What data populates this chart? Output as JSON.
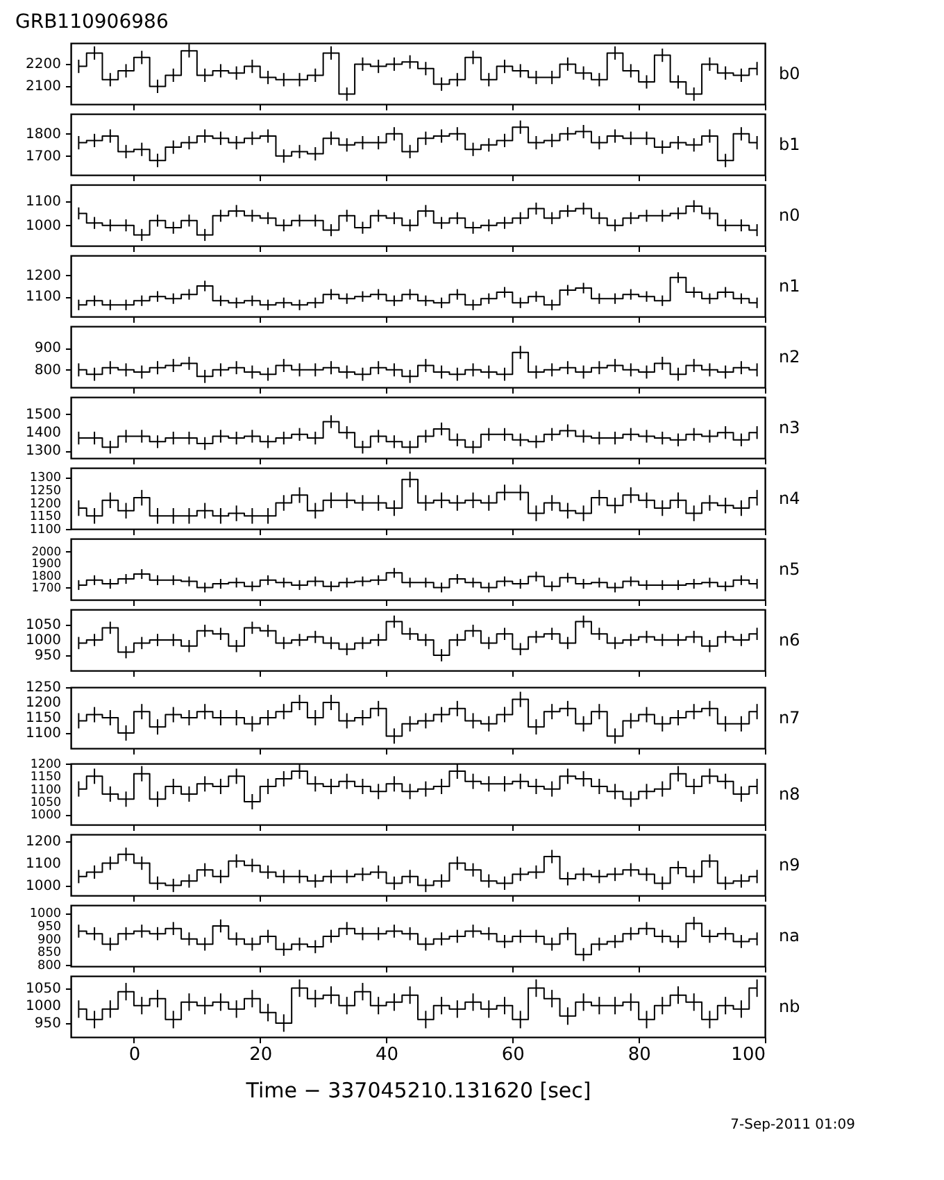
{
  "chart_data": [
    {
      "type": "step",
      "title": "GRB110906986",
      "y2label": "b0",
      "tick_labels": "y",
      "grid": false,
      "xlim": [
        -10,
        100
      ],
      "xticks": [
        0,
        20,
        40,
        60,
        80,
        100
      ],
      "ylim": [
        2020,
        2295
      ],
      "yticks": [
        2100,
        2200
      ],
      "x": [
        -8.75,
        -6.25,
        -3.75,
        -1.25,
        1.25,
        3.75,
        6.25,
        8.75,
        11.25,
        13.75,
        16.25,
        18.75,
        21.25,
        23.75,
        26.25,
        28.75,
        31.25,
        33.75,
        36.25,
        38.75,
        41.25,
        43.75,
        46.25,
        48.75,
        51.25,
        53.75,
        56.25,
        58.75,
        61.25,
        63.75,
        66.25,
        68.75,
        71.25,
        73.75,
        76.25,
        78.75,
        81.25,
        83.75,
        86.25,
        88.75,
        91.25,
        93.75,
        96.25,
        98.75
      ],
      "values": [
        2190,
        2250,
        2130,
        2170,
        2230,
        2100,
        2150,
        2260,
        2150,
        2170,
        2160,
        2190,
        2140,
        2130,
        2130,
        2150,
        2250,
        2065,
        2200,
        2190,
        2200,
        2210,
        2180,
        2110,
        2130,
        2230,
        2130,
        2190,
        2170,
        2140,
        2140,
        2200,
        2160,
        2130,
        2250,
        2170,
        2120,
        2240,
        2120,
        2065,
        2200,
        2160,
        2150,
        2180
      ],
      "errors": [
        30,
        30,
        30,
        30,
        30,
        30,
        30,
        30,
        30,
        30,
        30,
        30,
        30,
        30,
        30,
        30,
        30,
        30,
        30,
        30,
        30,
        30,
        30,
        30,
        30,
        30,
        30,
        30,
        30,
        30,
        30,
        30,
        30,
        30,
        30,
        30,
        30,
        30,
        30,
        30,
        30,
        30,
        30,
        30
      ]
    },
    {
      "type": "step",
      "y2label": "b1",
      "tick_labels": "y",
      "grid": false,
      "xlim": [
        -10,
        100
      ],
      "xticks": [
        0,
        20,
        40,
        60,
        80,
        100
      ],
      "ylim": [
        1615,
        1890
      ],
      "yticks": [
        1700,
        1800
      ],
      "x": [
        -8.75,
        -6.25,
        -3.75,
        -1.25,
        1.25,
        3.75,
        6.25,
        8.75,
        11.25,
        13.75,
        16.25,
        18.75,
        21.25,
        23.75,
        26.25,
        28.75,
        31.25,
        33.75,
        36.25,
        38.75,
        41.25,
        43.75,
        46.25,
        48.75,
        51.25,
        53.75,
        56.25,
        58.75,
        61.25,
        63.75,
        66.25,
        68.75,
        71.25,
        73.75,
        76.25,
        78.75,
        81.25,
        83.75,
        86.25,
        88.75,
        91.25,
        93.75,
        96.25,
        98.75
      ],
      "values": [
        1760,
        1770,
        1790,
        1720,
        1730,
        1680,
        1740,
        1760,
        1790,
        1780,
        1760,
        1780,
        1790,
        1700,
        1720,
        1710,
        1780,
        1750,
        1760,
        1760,
        1800,
        1720,
        1780,
        1790,
        1800,
        1730,
        1750,
        1770,
        1830,
        1760,
        1770,
        1800,
        1810,
        1760,
        1790,
        1780,
        1780,
        1740,
        1760,
        1750,
        1790,
        1680,
        1800,
        1760
      ],
      "errors": [
        30,
        30,
        30,
        30,
        30,
        30,
        30,
        30,
        30,
        30,
        30,
        30,
        30,
        30,
        30,
        30,
        30,
        30,
        30,
        30,
        30,
        30,
        30,
        30,
        30,
        30,
        30,
        30,
        30,
        30,
        30,
        30,
        30,
        30,
        30,
        30,
        30,
        30,
        30,
        30,
        30,
        30,
        30,
        30
      ]
    },
    {
      "type": "step",
      "y2label": "n0",
      "tick_labels": "y",
      "grid": false,
      "xlim": [
        -10,
        100
      ],
      "xticks": [
        0,
        20,
        40,
        60,
        80,
        100
      ],
      "ylim": [
        915,
        1170
      ],
      "yticks": [
        1000,
        1100
      ],
      "x": [
        -8.75,
        -6.25,
        -3.75,
        -1.25,
        1.25,
        3.75,
        6.25,
        8.75,
        11.25,
        13.75,
        16.25,
        18.75,
        21.25,
        23.75,
        26.25,
        28.75,
        31.25,
        33.75,
        36.25,
        38.75,
        41.25,
        43.75,
        46.25,
        48.75,
        51.25,
        53.75,
        56.25,
        58.75,
        61.25,
        63.75,
        66.25,
        68.75,
        71.25,
        73.75,
        76.25,
        78.75,
        81.25,
        83.75,
        86.25,
        88.75,
        91.25,
        93.75,
        96.25,
        98.75
      ],
      "values": [
        1050,
        1010,
        1000,
        1000,
        960,
        1020,
        990,
        1020,
        960,
        1040,
        1060,
        1040,
        1030,
        1000,
        1020,
        1020,
        980,
        1040,
        990,
        1040,
        1030,
        1000,
        1060,
        1010,
        1030,
        990,
        1000,
        1010,
        1030,
        1070,
        1030,
        1060,
        1070,
        1030,
        1000,
        1030,
        1040,
        1040,
        1050,
        1080,
        1050,
        1000,
        1000,
        980
      ],
      "errors": [
        25,
        25,
        25,
        25,
        25,
        25,
        25,
        25,
        25,
        25,
        25,
        25,
        25,
        25,
        25,
        25,
        25,
        25,
        25,
        25,
        25,
        25,
        25,
        25,
        25,
        25,
        25,
        25,
        25,
        25,
        25,
        25,
        25,
        25,
        25,
        25,
        25,
        25,
        25,
        25,
        25,
        25,
        25,
        25
      ]
    },
    {
      "type": "step",
      "y2label": "n1",
      "tick_labels": "y",
      "grid": false,
      "xlim": [
        -10,
        100
      ],
      "xticks": [
        0,
        20,
        40,
        60,
        80,
        100
      ],
      "ylim": [
        1005,
        1295
      ],
      "yticks": [
        1100,
        1200
      ],
      "x": [
        -8.75,
        -6.25,
        -3.75,
        -1.25,
        1.25,
        3.75,
        6.25,
        8.75,
        11.25,
        13.75,
        16.25,
        18.75,
        21.25,
        23.75,
        26.25,
        28.75,
        31.25,
        33.75,
        36.25,
        38.75,
        41.25,
        43.75,
        46.25,
        48.75,
        51.25,
        53.75,
        56.25,
        58.75,
        61.25,
        63.75,
        66.25,
        68.75,
        71.25,
        73.75,
        76.25,
        78.75,
        81.25,
        83.75,
        86.25,
        88.75,
        91.25,
        93.75,
        96.25,
        98.75
      ],
      "values": [
        1060,
        1080,
        1060,
        1060,
        1080,
        1100,
        1090,
        1110,
        1150,
        1080,
        1070,
        1080,
        1060,
        1070,
        1060,
        1070,
        1110,
        1090,
        1100,
        1110,
        1080,
        1110,
        1080,
        1070,
        1110,
        1060,
        1090,
        1120,
        1070,
        1100,
        1060,
        1130,
        1140,
        1090,
        1090,
        1110,
        1100,
        1080,
        1190,
        1120,
        1090,
        1120,
        1090,
        1070
      ],
      "errors": [
        25,
        25,
        25,
        25,
        25,
        25,
        25,
        25,
        25,
        25,
        25,
        25,
        25,
        25,
        25,
        25,
        25,
        25,
        25,
        25,
        25,
        25,
        25,
        25,
        25,
        25,
        25,
        25,
        25,
        25,
        25,
        25,
        25,
        25,
        25,
        25,
        25,
        25,
        25,
        25,
        25,
        25,
        25,
        25
      ]
    },
    {
      "type": "step",
      "y2label": "n2",
      "tick_labels": "y",
      "grid": false,
      "xlim": [
        -10,
        100
      ],
      "xticks": [
        0,
        20,
        40,
        60,
        80,
        100
      ],
      "ylim": [
        720,
        1000
      ],
      "yticks": [
        800,
        900
      ],
      "x": [
        -8.75,
        -6.25,
        -3.75,
        -1.25,
        1.25,
        3.75,
        6.25,
        8.75,
        11.25,
        13.75,
        16.25,
        18.75,
        21.25,
        23.75,
        26.25,
        28.75,
        31.25,
        33.75,
        36.25,
        38.75,
        41.25,
        43.75,
        46.25,
        48.75,
        51.25,
        53.75,
        56.25,
        58.75,
        61.25,
        63.75,
        66.25,
        68.75,
        71.25,
        73.75,
        76.25,
        78.75,
        81.25,
        83.75,
        86.25,
        88.75,
        91.25,
        93.75,
        96.25,
        98.75
      ],
      "values": [
        800,
        780,
        810,
        800,
        790,
        810,
        820,
        830,
        770,
        800,
        810,
        790,
        780,
        820,
        800,
        800,
        810,
        790,
        780,
        810,
        800,
        770,
        820,
        790,
        780,
        800,
        790,
        780,
        880,
        790,
        800,
        810,
        790,
        810,
        820,
        800,
        790,
        830,
        780,
        820,
        800,
        790,
        810,
        800
      ],
      "errors": [
        30,
        30,
        30,
        30,
        30,
        30,
        30,
        30,
        30,
        30,
        30,
        30,
        30,
        30,
        30,
        30,
        30,
        30,
        30,
        30,
        30,
        30,
        30,
        30,
        30,
        30,
        30,
        30,
        30,
        30,
        30,
        30,
        30,
        30,
        30,
        30,
        30,
        30,
        30,
        30,
        30,
        30,
        30,
        30
      ]
    },
    {
      "type": "step",
      "y2label": "n3",
      "tick_labels": "y",
      "grid": false,
      "xlim": [
        -10,
        100
      ],
      "xticks": [
        0,
        20,
        40,
        60,
        80,
        100
      ],
      "ylim": [
        1260,
        1595
      ],
      "yticks": [
        1300,
        1400,
        1500
      ],
      "x": [
        -8.75,
        -6.25,
        -3.75,
        -1.25,
        1.25,
        3.75,
        6.25,
        8.75,
        11.25,
        13.75,
        16.25,
        18.75,
        21.25,
        23.75,
        26.25,
        28.75,
        31.25,
        33.75,
        36.25,
        38.75,
        41.25,
        43.75,
        46.25,
        48.75,
        51.25,
        53.75,
        56.25,
        58.75,
        61.25,
        63.75,
        66.25,
        68.75,
        71.25,
        73.75,
        76.25,
        78.75,
        81.25,
        83.75,
        86.25,
        88.75,
        91.25,
        93.75,
        96.25,
        98.75
      ],
      "values": [
        1370,
        1370,
        1320,
        1380,
        1380,
        1350,
        1370,
        1370,
        1340,
        1380,
        1370,
        1380,
        1350,
        1370,
        1390,
        1370,
        1460,
        1400,
        1320,
        1380,
        1350,
        1320,
        1380,
        1420,
        1360,
        1320,
        1390,
        1390,
        1360,
        1350,
        1390,
        1410,
        1380,
        1370,
        1370,
        1390,
        1380,
        1370,
        1360,
        1390,
        1380,
        1400,
        1360,
        1400
      ],
      "errors": [
        35,
        35,
        35,
        35,
        35,
        35,
        35,
        35,
        35,
        35,
        35,
        35,
        35,
        35,
        35,
        35,
        35,
        35,
        35,
        35,
        35,
        35,
        35,
        35,
        35,
        35,
        35,
        35,
        35,
        35,
        35,
        35,
        35,
        35,
        35,
        35,
        35,
        35,
        35,
        35,
        35,
        35,
        35,
        35
      ]
    },
    {
      "type": "step",
      "y2label": "n4",
      "tick_labels": "y",
      "grid": false,
      "xlim": [
        -10,
        100
      ],
      "xticks": [
        0,
        20,
        40,
        60,
        80,
        100
      ],
      "ylim": [
        1100,
        1335
      ],
      "yticks": [
        1100,
        1150,
        1200,
        1250,
        1300
      ],
      "x": [
        -8.75,
        -6.25,
        -3.75,
        -1.25,
        1.25,
        3.75,
        6.25,
        8.75,
        11.25,
        13.75,
        16.25,
        18.75,
        21.25,
        23.75,
        26.25,
        28.75,
        31.25,
        33.75,
        36.25,
        38.75,
        41.25,
        43.75,
        46.25,
        48.75,
        51.25,
        53.75,
        56.25,
        58.75,
        61.25,
        63.75,
        66.25,
        68.75,
        71.25,
        73.75,
        76.25,
        78.75,
        81.25,
        83.75,
        86.25,
        88.75,
        91.25,
        93.75,
        96.25,
        98.75
      ],
      "values": [
        1180,
        1150,
        1210,
        1170,
        1220,
        1150,
        1150,
        1150,
        1170,
        1150,
        1160,
        1150,
        1150,
        1200,
        1230,
        1170,
        1210,
        1210,
        1200,
        1200,
        1180,
        1290,
        1200,
        1210,
        1200,
        1210,
        1200,
        1240,
        1240,
        1160,
        1200,
        1170,
        1160,
        1220,
        1190,
        1230,
        1210,
        1180,
        1210,
        1160,
        1200,
        1190,
        1180,
        1220
      ],
      "errors": [
        30,
        30,
        30,
        30,
        30,
        30,
        30,
        30,
        30,
        30,
        30,
        30,
        30,
        30,
        30,
        30,
        30,
        30,
        30,
        30,
        30,
        30,
        30,
        30,
        30,
        30,
        30,
        30,
        30,
        30,
        30,
        30,
        30,
        30,
        30,
        30,
        30,
        30,
        30,
        30,
        30,
        30,
        30,
        30
      ]
    },
    {
      "type": "step",
      "y2label": "n5",
      "tick_labels": "y",
      "grid": false,
      "xlim": [
        -10,
        100
      ],
      "xticks": [
        0,
        20,
        40,
        60,
        80,
        100
      ],
      "ylim": [
        1600,
        2100
      ],
      "yticks": [
        1700,
        1800,
        1900,
        2000
      ],
      "x": [
        -8.75,
        -6.25,
        -3.75,
        -1.25,
        1.25,
        3.75,
        6.25,
        8.75,
        11.25,
        13.75,
        16.25,
        18.75,
        21.25,
        23.75,
        26.25,
        28.75,
        31.25,
        33.75,
        36.25,
        38.75,
        41.25,
        43.75,
        46.25,
        48.75,
        51.25,
        53.75,
        56.25,
        58.75,
        61.25,
        63.75,
        66.25,
        68.75,
        71.25,
        73.75,
        76.25,
        78.75,
        81.25,
        83.75,
        86.25,
        88.75,
        91.25,
        93.75,
        96.25,
        98.75
      ],
      "values": [
        1720,
        1760,
        1730,
        1770,
        1810,
        1760,
        1760,
        1750,
        1700,
        1730,
        1740,
        1710,
        1760,
        1740,
        1720,
        1750,
        1710,
        1740,
        1750,
        1760,
        1820,
        1740,
        1740,
        1700,
        1770,
        1740,
        1700,
        1750,
        1730,
        1790,
        1710,
        1780,
        1730,
        1740,
        1700,
        1750,
        1720,
        1720,
        1720,
        1730,
        1740,
        1710,
        1760,
        1730
      ],
      "errors": [
        40,
        40,
        40,
        40,
        40,
        40,
        40,
        40,
        40,
        40,
        40,
        40,
        40,
        40,
        40,
        40,
        40,
        40,
        40,
        40,
        40,
        40,
        40,
        40,
        40,
        40,
        40,
        40,
        40,
        40,
        40,
        40,
        40,
        40,
        40,
        40,
        40,
        40,
        40,
        40,
        40,
        40,
        40,
        40
      ]
    },
    {
      "type": "step",
      "y2label": "n6",
      "tick_labels": "y",
      "grid": false,
      "xlim": [
        -10,
        100
      ],
      "xticks": [
        0,
        20,
        40,
        60,
        80,
        100
      ],
      "ylim": [
        900,
        1100
      ],
      "yticks": [
        950,
        1000,
        1050
      ],
      "x": [
        -8.75,
        -6.25,
        -3.75,
        -1.25,
        1.25,
        3.75,
        6.25,
        8.75,
        11.25,
        13.75,
        16.25,
        18.75,
        21.25,
        23.75,
        26.25,
        28.75,
        31.25,
        33.75,
        36.25,
        38.75,
        41.25,
        43.75,
        46.25,
        48.75,
        51.25,
        53.75,
        56.25,
        58.75,
        61.25,
        63.75,
        66.25,
        68.75,
        71.25,
        73.75,
        76.25,
        78.75,
        81.25,
        83.75,
        86.25,
        88.75,
        91.25,
        93.75,
        96.25,
        98.75
      ],
      "values": [
        990,
        1000,
        1040,
        960,
        990,
        1000,
        1000,
        980,
        1030,
        1020,
        980,
        1040,
        1030,
        990,
        1000,
        1010,
        990,
        970,
        990,
        1000,
        1060,
        1020,
        1000,
        950,
        1000,
        1030,
        990,
        1020,
        970,
        1010,
        1020,
        990,
        1060,
        1020,
        990,
        1000,
        1010,
        1000,
        1000,
        1010,
        980,
        1010,
        1000,
        1020
      ],
      "errors": [
        20,
        20,
        20,
        20,
        20,
        20,
        20,
        20,
        20,
        20,
        20,
        20,
        20,
        20,
        20,
        20,
        20,
        20,
        20,
        20,
        20,
        20,
        20,
        20,
        20,
        20,
        20,
        20,
        20,
        20,
        20,
        20,
        20,
        20,
        20,
        20,
        20,
        20,
        20,
        20,
        20,
        20,
        20,
        20
      ]
    },
    {
      "type": "step",
      "y2label": "n7",
      "tick_labels": "y",
      "grid": false,
      "xlim": [
        -10,
        100
      ],
      "xticks": [
        0,
        20,
        40,
        60,
        80,
        100
      ],
      "ylim": [
        1050,
        1250
      ],
      "yticks": [
        1100,
        1150,
        1200,
        1250
      ],
      "x": [
        -8.75,
        -6.25,
        -3.75,
        -1.25,
        1.25,
        3.75,
        6.25,
        8.75,
        11.25,
        13.75,
        16.25,
        18.75,
        21.25,
        23.75,
        26.25,
        28.75,
        31.25,
        33.75,
        36.25,
        38.75,
        41.25,
        43.75,
        46.25,
        48.75,
        51.25,
        53.75,
        56.25,
        58.75,
        61.25,
        63.75,
        66.25,
        68.75,
        71.25,
        73.75,
        76.25,
        78.75,
        81.25,
        83.75,
        86.25,
        88.75,
        91.25,
        93.75,
        96.25,
        98.75
      ],
      "values": [
        1140,
        1160,
        1150,
        1100,
        1170,
        1120,
        1160,
        1150,
        1170,
        1150,
        1150,
        1130,
        1150,
        1170,
        1200,
        1150,
        1200,
        1140,
        1150,
        1180,
        1090,
        1130,
        1140,
        1160,
        1180,
        1140,
        1130,
        1160,
        1210,
        1120,
        1170,
        1180,
        1130,
        1170,
        1090,
        1140,
        1160,
        1130,
        1150,
        1170,
        1180,
        1130,
        1130,
        1170
      ],
      "errors": [
        25,
        25,
        25,
        25,
        25,
        25,
        25,
        25,
        25,
        25,
        25,
        25,
        25,
        25,
        25,
        25,
        25,
        25,
        25,
        25,
        25,
        25,
        25,
        25,
        25,
        25,
        25,
        25,
        25,
        25,
        25,
        25,
        25,
        25,
        25,
        25,
        25,
        25,
        25,
        25,
        25,
        25,
        25,
        25
      ]
    },
    {
      "type": "step",
      "y2label": "n8",
      "tick_labels": "y",
      "grid": false,
      "xlim": [
        -10,
        100
      ],
      "xticks": [
        0,
        20,
        40,
        60,
        80,
        100
      ],
      "ylim": [
        960,
        1200
      ],
      "yticks": [
        1000,
        1050,
        1100,
        1150,
        1200
      ],
      "x": [
        -8.75,
        -6.25,
        -3.75,
        -1.25,
        1.25,
        3.75,
        6.25,
        8.75,
        11.25,
        13.75,
        16.25,
        18.75,
        21.25,
        23.75,
        26.25,
        28.75,
        31.25,
        33.75,
        36.25,
        38.75,
        41.25,
        43.75,
        46.25,
        48.75,
        51.25,
        53.75,
        56.25,
        58.75,
        61.25,
        63.75,
        66.25,
        68.75,
        71.25,
        73.75,
        76.25,
        78.75,
        81.25,
        83.75,
        86.25,
        88.75,
        91.25,
        93.75,
        96.25,
        98.75
      ],
      "values": [
        1100,
        1150,
        1080,
        1060,
        1160,
        1060,
        1110,
        1080,
        1120,
        1110,
        1150,
        1050,
        1110,
        1140,
        1170,
        1120,
        1110,
        1130,
        1110,
        1090,
        1120,
        1090,
        1100,
        1110,
        1170,
        1130,
        1120,
        1120,
        1130,
        1110,
        1100,
        1150,
        1140,
        1110,
        1090,
        1060,
        1090,
        1100,
        1160,
        1110,
        1150,
        1130,
        1080,
        1110
      ],
      "errors": [
        30,
        30,
        30,
        30,
        30,
        30,
        30,
        30,
        30,
        30,
        30,
        30,
        30,
        30,
        30,
        30,
        30,
        30,
        30,
        30,
        30,
        30,
        30,
        30,
        30,
        30,
        30,
        30,
        30,
        30,
        30,
        30,
        30,
        30,
        30,
        30,
        30,
        30,
        30,
        30,
        30,
        30,
        30,
        30
      ]
    },
    {
      "type": "step",
      "y2label": "n9",
      "tick_labels": "y",
      "grid": false,
      "xlim": [
        -10,
        100
      ],
      "xticks": [
        0,
        20,
        40,
        60,
        80,
        100
      ],
      "ylim": [
        955,
        1230
      ],
      "yticks": [
        1000,
        1100,
        1200
      ],
      "x": [
        -8.75,
        -6.25,
        -3.75,
        -1.25,
        1.25,
        3.75,
        6.25,
        8.75,
        11.25,
        13.75,
        16.25,
        18.75,
        21.25,
        23.75,
        26.25,
        28.75,
        31.25,
        33.75,
        36.25,
        38.75,
        41.25,
        43.75,
        46.25,
        48.75,
        51.25,
        53.75,
        56.25,
        58.75,
        61.25,
        63.75,
        66.25,
        68.75,
        71.25,
        73.75,
        76.25,
        78.75,
        81.25,
        83.75,
        86.25,
        88.75,
        91.25,
        93.75,
        96.25,
        98.75
      ],
      "values": [
        1040,
        1060,
        1100,
        1140,
        1100,
        1010,
        1000,
        1020,
        1070,
        1040,
        1110,
        1090,
        1060,
        1040,
        1040,
        1020,
        1040,
        1040,
        1050,
        1060,
        1010,
        1040,
        1000,
        1020,
        1100,
        1070,
        1020,
        1010,
        1050,
        1060,
        1130,
        1030,
        1050,
        1040,
        1050,
        1070,
        1050,
        1010,
        1080,
        1040,
        1110,
        1010,
        1020,
        1040
      ],
      "errors": [
        30,
        30,
        30,
        30,
        30,
        30,
        30,
        30,
        30,
        30,
        30,
        30,
        30,
        30,
        30,
        30,
        30,
        30,
        30,
        30,
        30,
        30,
        30,
        30,
        30,
        30,
        30,
        30,
        30,
        30,
        30,
        30,
        30,
        30,
        30,
        30,
        30,
        30,
        30,
        30,
        30,
        30,
        30,
        30
      ]
    },
    {
      "type": "step",
      "y2label": "na",
      "tick_labels": "y",
      "grid": false,
      "xlim": [
        -10,
        100
      ],
      "xticks": [
        0,
        20,
        40,
        60,
        80,
        100
      ],
      "ylim": [
        795,
        1030
      ],
      "yticks": [
        800,
        850,
        900,
        950,
        1000
      ],
      "x": [
        -8.75,
        -6.25,
        -3.75,
        -1.25,
        1.25,
        3.75,
        6.25,
        8.75,
        11.25,
        13.75,
        16.25,
        18.75,
        21.25,
        23.75,
        26.25,
        28.75,
        31.25,
        33.75,
        36.25,
        38.75,
        41.25,
        43.75,
        46.25,
        48.75,
        51.25,
        53.75,
        56.25,
        58.75,
        61.25,
        63.75,
        66.25,
        68.75,
        71.25,
        73.75,
        76.25,
        78.75,
        81.25,
        83.75,
        86.25,
        88.75,
        91.25,
        93.75,
        96.25,
        98.75
      ],
      "values": [
        930,
        920,
        880,
        920,
        930,
        920,
        940,
        900,
        880,
        950,
        900,
        880,
        910,
        860,
        880,
        870,
        910,
        940,
        920,
        920,
        930,
        920,
        880,
        900,
        910,
        930,
        920,
        890,
        910,
        910,
        880,
        920,
        840,
        880,
        890,
        920,
        940,
        910,
        890,
        960,
        910,
        920,
        890,
        900
      ],
      "errors": [
        25,
        25,
        25,
        25,
        25,
        25,
        25,
        25,
        25,
        25,
        25,
        25,
        25,
        25,
        25,
        25,
        25,
        25,
        25,
        25,
        25,
        25,
        25,
        25,
        25,
        25,
        25,
        25,
        25,
        25,
        25,
        25,
        25,
        25,
        25,
        25,
        25,
        25,
        25,
        25,
        25,
        25,
        25,
        25
      ]
    },
    {
      "type": "step",
      "y2label": "nb",
      "xlabel": "Time − 337045210.131620 [sec]",
      "annotations": [
        "7-Sep-2011 01:09"
      ],
      "grid": false,
      "xlim": [
        -10,
        100
      ],
      "xticks": [
        0,
        20,
        40,
        60,
        80,
        100
      ],
      "ylim": [
        910,
        1085
      ],
      "yticks": [
        950,
        1000,
        1050
      ],
      "x": [
        -8.75,
        -6.25,
        -3.75,
        -1.25,
        1.25,
        3.75,
        6.25,
        8.75,
        11.25,
        13.75,
        16.25,
        18.75,
        21.25,
        23.75,
        26.25,
        28.75,
        31.25,
        33.75,
        36.25,
        38.75,
        41.25,
        43.75,
        46.25,
        48.75,
        51.25,
        53.75,
        56.25,
        58.75,
        61.25,
        63.75,
        66.25,
        68.75,
        71.25,
        73.75,
        76.25,
        78.75,
        81.25,
        83.75,
        86.25,
        88.75,
        91.25,
        93.75,
        96.25,
        98.75
      ],
      "values": [
        990,
        960,
        990,
        1040,
        1000,
        1020,
        960,
        1010,
        1000,
        1010,
        990,
        1020,
        980,
        950,
        1050,
        1020,
        1030,
        1000,
        1040,
        1000,
        1010,
        1030,
        960,
        1000,
        990,
        1010,
        990,
        1000,
        960,
        1050,
        1020,
        970,
        1010,
        1000,
        1000,
        1010,
        960,
        1000,
        1030,
        1010,
        960,
        1000,
        990,
        1050
      ],
      "errors": [
        25,
        25,
        25,
        25,
        25,
        25,
        25,
        25,
        25,
        25,
        25,
        25,
        25,
        25,
        25,
        25,
        25,
        25,
        25,
        25,
        25,
        25,
        25,
        25,
        25,
        25,
        25,
        25,
        25,
        25,
        25,
        25,
        25,
        25,
        25,
        25,
        25,
        25,
        25,
        25,
        25,
        25,
        25,
        25
      ]
    }
  ]
}
